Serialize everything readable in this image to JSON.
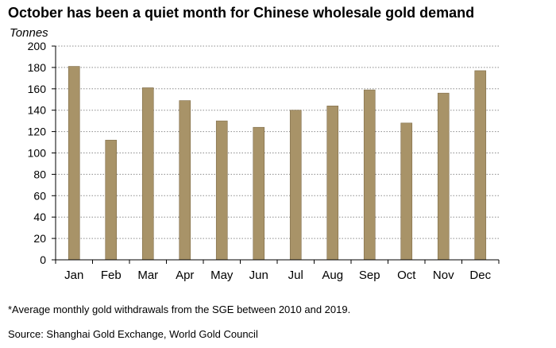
{
  "chart_data": {
    "type": "bar",
    "title": "October has been a quiet month for Chinese wholesale gold demand",
    "ylabel": "Tonnes",
    "xlabel": "",
    "categories": [
      "Jan",
      "Feb",
      "Mar",
      "Apr",
      "May",
      "Jun",
      "Jul",
      "Aug",
      "Sep",
      "Oct",
      "Nov",
      "Dec"
    ],
    "values": [
      181,
      112,
      161,
      149,
      130,
      124,
      140,
      144,
      159,
      128,
      156,
      177
    ],
    "ylim": [
      0,
      200
    ],
    "yticks": [
      0,
      20,
      40,
      60,
      80,
      100,
      120,
      140,
      160,
      180,
      200
    ],
    "grid": true,
    "legend": "none",
    "bar_color": "#a89368",
    "bar_edge_color": "#7f6c48"
  },
  "footnote": "*Average monthly gold withdrawals from the SGE between 2010 and 2019.",
  "source": "Source: Shanghai Gold Exchange, World Gold Council"
}
